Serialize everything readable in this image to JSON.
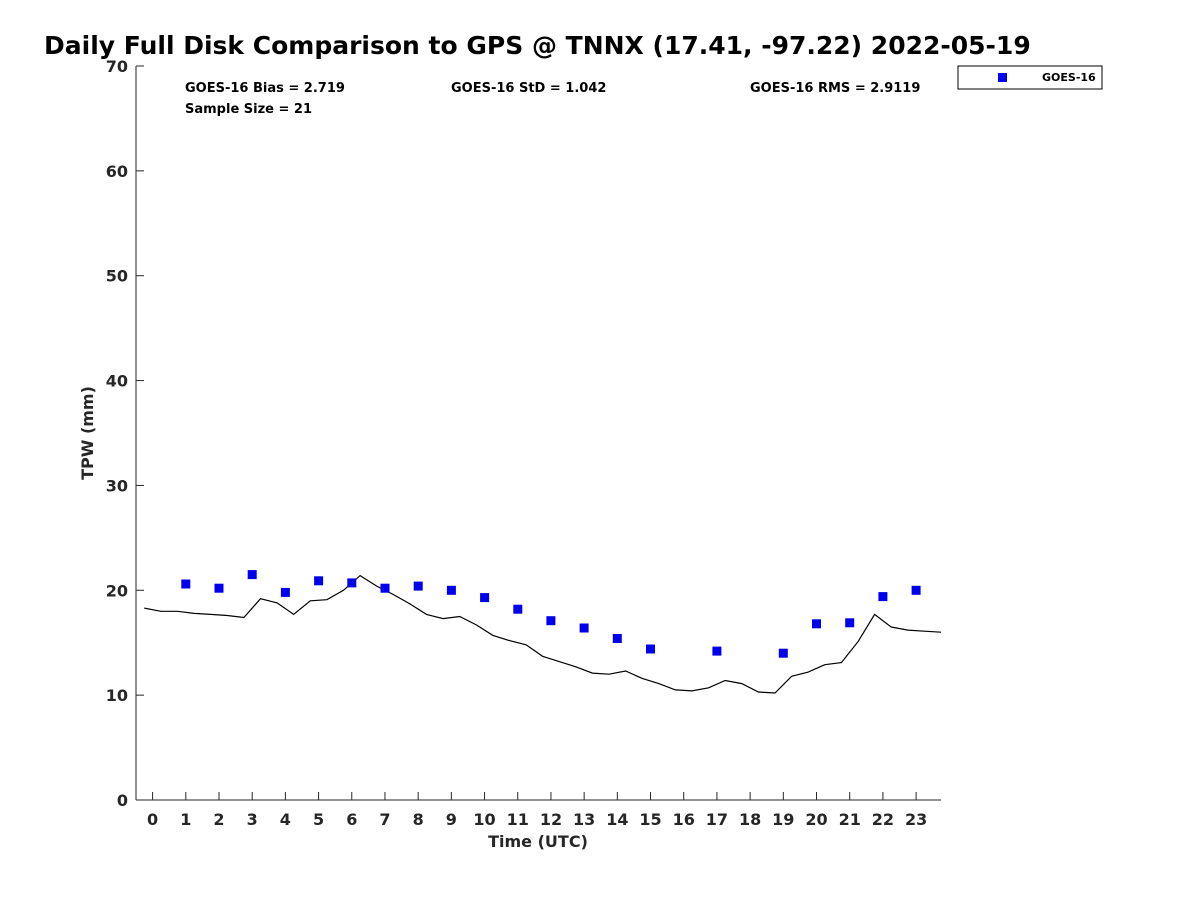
{
  "chart_data": {
    "type": "scatter",
    "title": "Daily Full Disk Comparison to GPS @ TNNX (17.41, -97.22) 2022-05-19",
    "xlabel": "Time (UTC)",
    "ylabel": "TPW (mm)",
    "xlim": [
      -0.5,
      23.75
    ],
    "ylim": [
      0,
      70
    ],
    "x_ticks": [
      "0",
      "1",
      "2",
      "3",
      "4",
      "5",
      "6",
      "7",
      "8",
      "9",
      "10",
      "11",
      "12",
      "13",
      "14",
      "15",
      "16",
      "17",
      "18",
      "19",
      "20",
      "21",
      "22",
      "23"
    ],
    "y_ticks": [
      "0",
      "10",
      "20",
      "30",
      "40",
      "50",
      "60",
      "70"
    ],
    "stats": {
      "bias": "GOES-16 Bias = 2.719",
      "std": "GOES-16 StD = 1.042",
      "rms": "GOES-16 RMS = 2.9119",
      "sample_size": "Sample Size = 21"
    },
    "legend_position": "top-right, outside plot",
    "series": [
      {
        "name": "GOES-16",
        "kind": "scatter",
        "marker": "square",
        "color": "#0000ee",
        "x": [
          1,
          2,
          3,
          4,
          5,
          6,
          7,
          8,
          9,
          10,
          11,
          12,
          13,
          14,
          15,
          17,
          19,
          20,
          21,
          22,
          23
        ],
        "y": [
          20.6,
          20.2,
          21.5,
          19.8,
          20.9,
          20.7,
          20.2,
          20.4,
          20.0,
          19.3,
          18.2,
          17.1,
          16.4,
          15.4,
          14.4,
          14.2,
          14.0,
          16.8,
          16.9,
          19.4,
          20.0
        ]
      },
      {
        "kind": "line",
        "color": "#000000",
        "x": [
          -0.25,
          0.25,
          0.75,
          1.25,
          1.75,
          2.25,
          2.75,
          3.25,
          3.75,
          4.25,
          4.75,
          5.25,
          5.75,
          6.25,
          6.75,
          7.25,
          7.75,
          8.25,
          8.75,
          9.25,
          9.75,
          10.25,
          10.75,
          11.25,
          11.75,
          12.25,
          12.75,
          13.25,
          13.75,
          14.25,
          14.75,
          15.25,
          15.75,
          16.25,
          16.75,
          17.25,
          17.75,
          18.25,
          18.75,
          19.25,
          19.75,
          20.25,
          20.75,
          21.25,
          21.75,
          22.25,
          22.75,
          23.25,
          23.75
        ],
        "y": [
          18.3,
          18.0,
          18.0,
          17.8,
          17.7,
          17.6,
          17.4,
          19.2,
          18.8,
          17.7,
          19.0,
          19.1,
          20.0,
          21.4,
          20.4,
          19.6,
          18.7,
          17.7,
          17.3,
          17.5,
          16.7,
          15.7,
          15.2,
          14.8,
          13.7,
          13.2,
          12.7,
          12.1,
          12.0,
          12.3,
          11.6,
          11.1,
          10.5,
          10.4,
          10.7,
          11.4,
          11.1,
          10.3,
          10.2,
          11.8,
          12.2,
          12.9,
          13.1,
          15.1,
          17.7,
          16.5,
          16.2,
          16.1,
          16.0
        ]
      }
    ]
  }
}
